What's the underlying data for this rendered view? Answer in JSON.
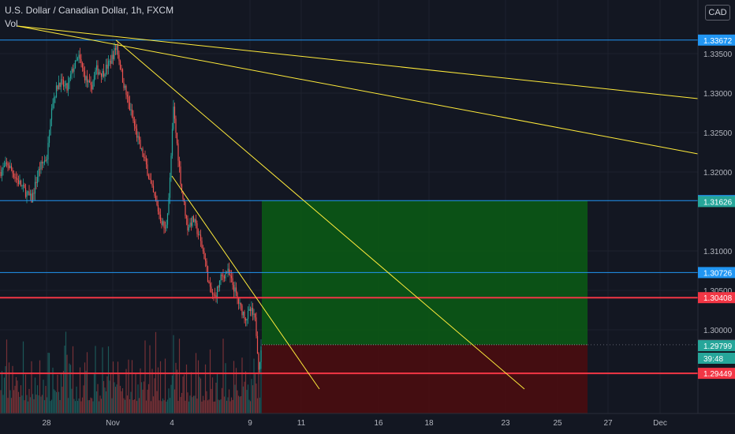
{
  "header": {
    "title": "U.S. Dollar / Canadian Dollar, 1h, FXCM",
    "volume_label": "Vol"
  },
  "currency_button": "CAD",
  "colors": {
    "background": "#131722",
    "grid": "#1e222d",
    "text": "#b2b5be",
    "up": "#26a69a",
    "down": "#ef5350",
    "trendline": "#ffeb3b",
    "blue_line": "#2196f3",
    "red_line": "#f23645",
    "profit_zone": "#0b5c14",
    "loss_zone": "#4a0c0f"
  },
  "chart_data": {
    "type": "candlestick",
    "title": "U.S. Dollar / Canadian Dollar, 1h, FXCM",
    "y_ticks": [
      "1.33500",
      "1.33000",
      "1.32500",
      "1.32000",
      "1.31000",
      "1.30500",
      "1.30000"
    ],
    "x_ticks": [
      "28",
      "Nov",
      "4",
      "9",
      "11",
      "16",
      "18",
      "23",
      "25",
      "27",
      "Dec"
    ],
    "ylim": [
      1.2925,
      1.339
    ],
    "horizontal_lines": [
      {
        "price": 1.33672,
        "label": "1.33672",
        "color": "#2196f3"
      },
      {
        "price": 1.31638,
        "label": "1.31638",
        "color": "#2196f3"
      },
      {
        "price": 1.30726,
        "label": "1.30726",
        "color": "#2196f3"
      },
      {
        "price": 1.30408,
        "label": "1.30408",
        "color": "#f23645"
      },
      {
        "price": 1.29449,
        "label": "1.29449",
        "color": "#f23645"
      }
    ],
    "axis_labels": [
      {
        "price": 1.31626,
        "label": "1.31626",
        "color": "#26a69a"
      },
      {
        "price": 1.29811,
        "label": "1.29811",
        "color": "#3a3e4a"
      },
      {
        "price": 1.29799,
        "label": "1.29799",
        "color": "#26a69a"
      },
      {
        "price": 1.2964,
        "label": "39:48",
        "color": "#26a69a"
      }
    ],
    "trendlines": [
      {
        "from": {
          "date": "Oct 24",
          "price": 1.3385
        },
        "to": {
          "date": "Nov 30",
          "price": 1.3293
        }
      },
      {
        "from": {
          "date": "Oct 24",
          "price": 1.3385
        },
        "to": {
          "date": "Nov 30",
          "price": 1.3223
        }
      },
      {
        "from": {
          "date": "Nov 1",
          "price": 1.33672
        },
        "to": {
          "date": "Nov 23",
          "price": 1.2925
        }
      },
      {
        "from": {
          "date": "Nov 4",
          "price": 1.3195
        },
        "to": {
          "date": "Nov 10",
          "price": 1.2925
        }
      }
    ],
    "position": {
      "entry": 1.29811,
      "target": 1.31638,
      "stop": 1.29449,
      "start": "Nov 9",
      "end": "Nov 26"
    },
    "candles_close_path": [
      [
        0,
        1.32
      ],
      [
        10,
        1.321
      ],
      [
        22,
        1.319
      ],
      [
        32,
        1.3175
      ],
      [
        40,
        1.3165
      ],
      [
        50,
        1.3205
      ],
      [
        60,
        1.322
      ],
      [
        65,
        1.3285
      ],
      [
        75,
        1.3315
      ],
      [
        85,
        1.3305
      ],
      [
        92,
        1.333
      ],
      [
        100,
        1.3345
      ],
      [
        108,
        1.332
      ],
      [
        115,
        1.3305
      ],
      [
        122,
        1.333
      ],
      [
        130,
        1.3325
      ],
      [
        140,
        1.334
      ],
      [
        148,
        1.336
      ],
      [
        155,
        1.332
      ],
      [
        162,
        1.329
      ],
      [
        170,
        1.326
      ],
      [
        178,
        1.323
      ],
      [
        185,
        1.321
      ],
      [
        192,
        1.318
      ],
      [
        198,
        1.316
      ],
      [
        204,
        1.314
      ],
      [
        210,
        1.3125
      ],
      [
        215,
        1.318
      ],
      [
        220,
        1.328
      ],
      [
        224,
        1.324
      ],
      [
        230,
        1.318
      ],
      [
        238,
        1.313
      ],
      [
        245,
        1.314
      ],
      [
        252,
        1.312
      ],
      [
        260,
        1.309
      ],
      [
        266,
        1.305
      ],
      [
        272,
        1.304
      ],
      [
        280,
        1.3065
      ],
      [
        288,
        1.3075
      ],
      [
        296,
        1.3055
      ],
      [
        304,
        1.303
      ],
      [
        312,
        1.3015
      ],
      [
        318,
        1.3025
      ],
      [
        324,
        1.301
      ],
      [
        328,
        1.2955
      ],
      [
        332,
        1.2975
      ]
    ]
  }
}
